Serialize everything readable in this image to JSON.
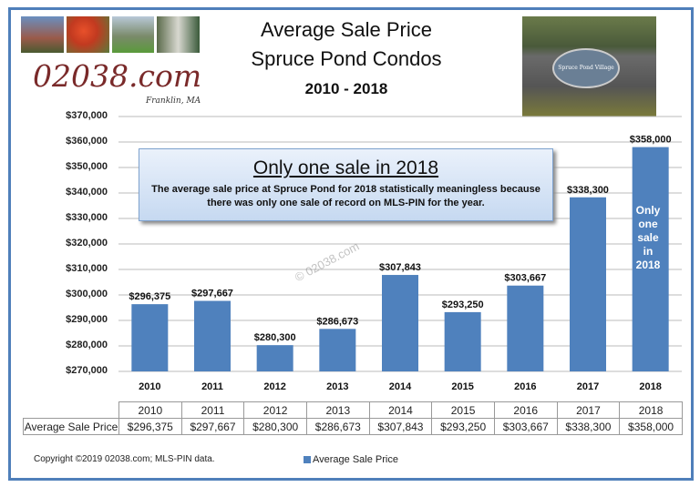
{
  "header": {
    "title1": "Average Sale Price",
    "title2": "Spruce Pond Condos",
    "title3": "2010 - 2018",
    "logo": "02038.com",
    "logo_sub": "Franklin, MA",
    "sign_text": "Spruce Pond Village"
  },
  "callout": {
    "heading": "Only one sale in 2018",
    "body": "The average sale price at Spruce Pond for 2018 statistically meaningless because there was only one sale of record on MLS-PIN for the year."
  },
  "watermark": "© 02038.com",
  "bar_note": [
    "Only",
    "one",
    "sale",
    "in",
    "2018"
  ],
  "footer": {
    "copyright": "Copyright ©2019 02038.com;  MLS-PIN data.",
    "legend": "Average Sale Price"
  },
  "colors": {
    "bar": "#4f81bd",
    "frame": "#4f7fba"
  },
  "chart_data": {
    "type": "bar",
    "title": "Average Sale Price Spruce Pond Condos 2010 - 2018",
    "categories": [
      "2010",
      "2011",
      "2012",
      "2013",
      "2014",
      "2015",
      "2016",
      "2017",
      "2018"
    ],
    "series": [
      {
        "name": "Average Sale Price",
        "values": [
          296375,
          297667,
          280300,
          286673,
          307843,
          293250,
          303667,
          338300,
          358000
        ]
      }
    ],
    "data_labels": [
      "$296,375",
      "$297,667",
      "$280,300",
      "$286,673",
      "$307,843",
      "$293,250",
      "$303,667",
      "$338,300",
      "$358,000"
    ],
    "ylim": [
      270000,
      370000
    ],
    "yticks": [
      "$270,000",
      "$280,000",
      "$290,000",
      "$300,000",
      "$310,000",
      "$320,000",
      "$330,000",
      "$340,000",
      "$350,000",
      "$360,000",
      "$370,000"
    ],
    "grid": true,
    "legend": "bottom",
    "table": {
      "row_label": "Average Sale Price"
    }
  }
}
